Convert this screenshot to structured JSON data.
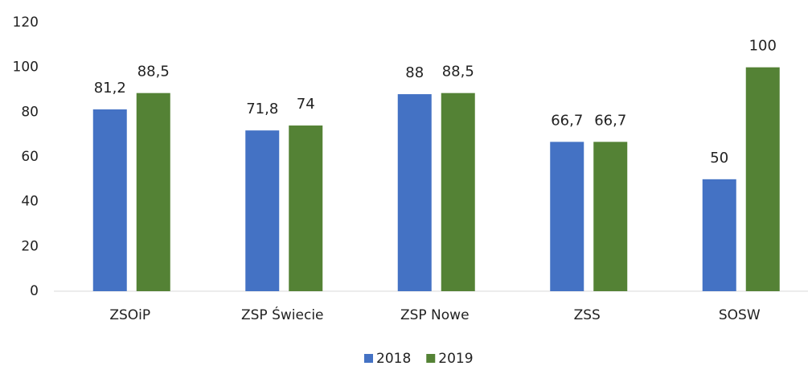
{
  "chart_data": {
    "type": "bar",
    "categories": [
      "ZSOiP",
      "ZSP Świecie",
      "ZSP Nowe",
      "ZSS",
      "SOSW"
    ],
    "series": [
      {
        "name": "2018",
        "color": "#4472c4",
        "values": [
          81.2,
          71.8,
          88,
          66.7,
          50
        ],
        "value_labels": [
          "81,2",
          "71,8",
          "88",
          "66,7",
          "50"
        ]
      },
      {
        "name": "2019",
        "color": "#548235",
        "values": [
          88.5,
          74,
          88.5,
          66.7,
          100
        ],
        "value_labels": [
          "88,5",
          "74",
          "88,5",
          "66,7",
          "100"
        ]
      }
    ],
    "ylim": [
      0,
      120
    ],
    "yticks": [
      0,
      20,
      40,
      60,
      80,
      100,
      120
    ],
    "grid": false,
    "legend": "bottom"
  }
}
